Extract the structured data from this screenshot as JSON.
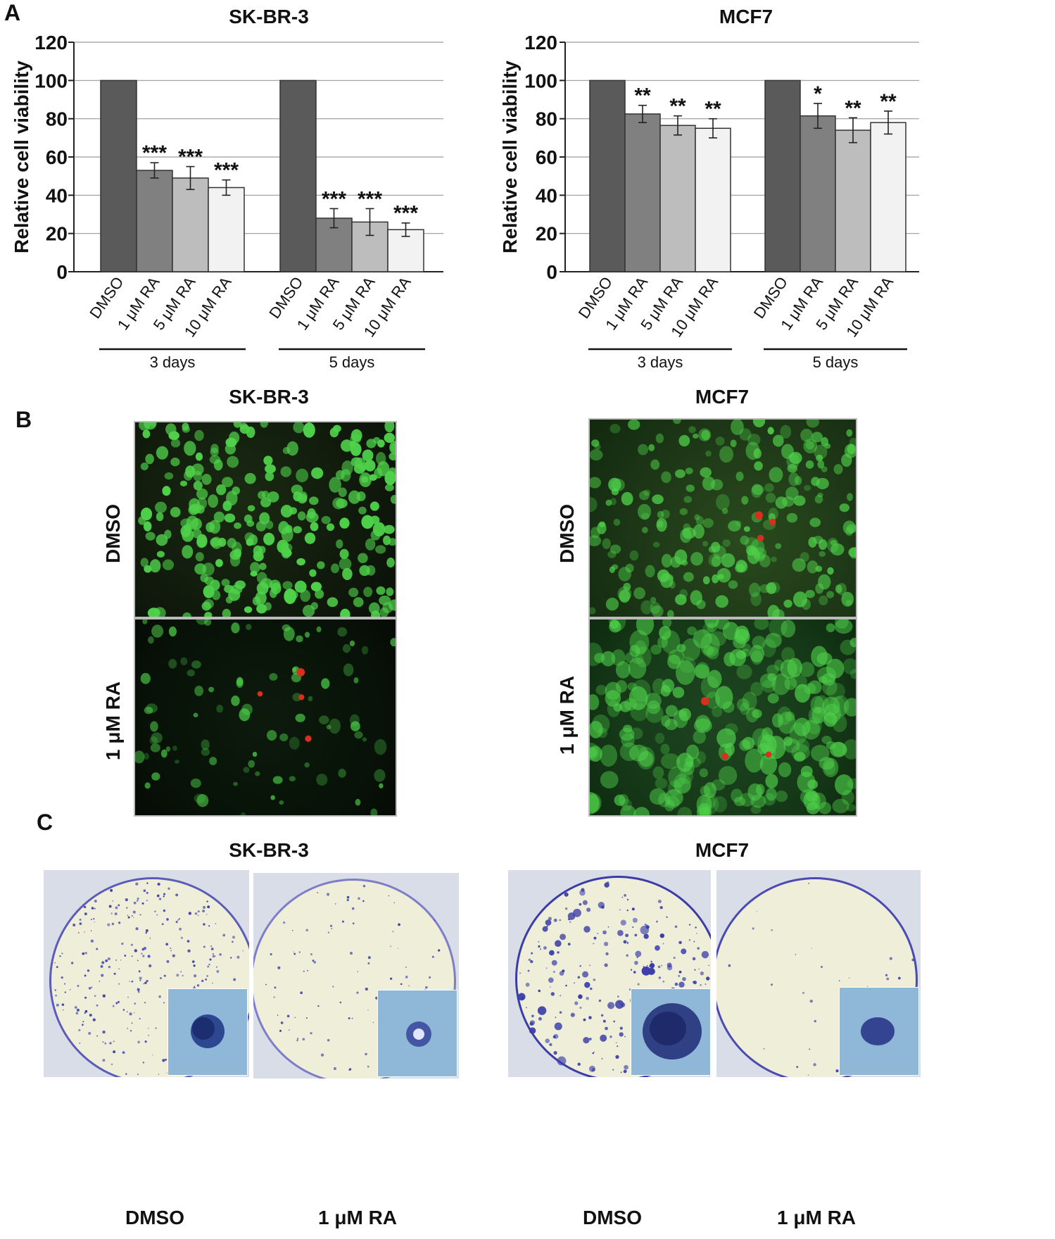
{
  "panels": {
    "a": {
      "letter": "A"
    },
    "b": {
      "letter": "B"
    },
    "c": {
      "letter": "C"
    }
  },
  "panel_a": {
    "left_title": "SK-BR-3",
    "right_title": "MCF7"
  },
  "panel_b": {
    "left_title": "SK-BR-3",
    "right_title": "MCF7",
    "row1_label": "DMSO",
    "row2_label": "1 μM RA"
  },
  "panel_c": {
    "left_title": "SK-BR-3",
    "right_title": "MCF7",
    "labels": [
      "DMSO",
      "1 μM RA",
      "DMSO",
      "1 μM RA"
    ]
  },
  "colors": {
    "dmso": "#5a5a5a",
    "ra1": "#808080",
    "ra5": "#bdbdbd",
    "ra10": "#f2f2f2",
    "green_cell": "#4fd14a",
    "red_cell": "#d8301e",
    "crystal_violet": "#3b3ea8"
  },
  "chart_data": [
    {
      "type": "bar",
      "title": "SK-BR-3",
      "ylabel": "Relative cell viability",
      "ylim": [
        0,
        120
      ],
      "yticks": [
        0,
        20,
        40,
        60,
        80,
        100,
        120
      ],
      "grid": true,
      "groups": [
        "3 days",
        "5 days"
      ],
      "categories": [
        "DMSO",
        "1 μM RA",
        "5 μM RA",
        "10 μM RA"
      ],
      "series": [
        {
          "group": "3 days",
          "values": [
            100,
            53,
            49,
            44
          ],
          "errors": [
            0,
            4,
            6,
            4
          ],
          "significance": [
            "",
            "***",
            "***",
            "***"
          ]
        },
        {
          "group": "5 days",
          "values": [
            100,
            28,
            26,
            22
          ],
          "errors": [
            0,
            5,
            7,
            3.5
          ],
          "significance": [
            "",
            "***",
            "***",
            "***"
          ]
        }
      ]
    },
    {
      "type": "bar",
      "title": "MCF7",
      "ylabel": "Relative cell viability",
      "ylim": [
        0,
        120
      ],
      "yticks": [
        0,
        20,
        40,
        60,
        80,
        100,
        120
      ],
      "grid": true,
      "groups": [
        "3 days",
        "5 days"
      ],
      "categories": [
        "DMSO",
        "1 μM RA",
        "5 μM RA",
        "10 μM RA"
      ],
      "series": [
        {
          "group": "3 days",
          "values": [
            100,
            82.5,
            76.5,
            75
          ],
          "errors": [
            0,
            4.5,
            5,
            5
          ],
          "significance": [
            "",
            "**",
            "**",
            "**"
          ]
        },
        {
          "group": "5 days",
          "values": [
            100,
            81.5,
            74,
            78
          ],
          "errors": [
            0,
            6.5,
            6.5,
            6
          ],
          "significance": [
            "",
            "*",
            "**",
            "**"
          ]
        }
      ]
    }
  ]
}
